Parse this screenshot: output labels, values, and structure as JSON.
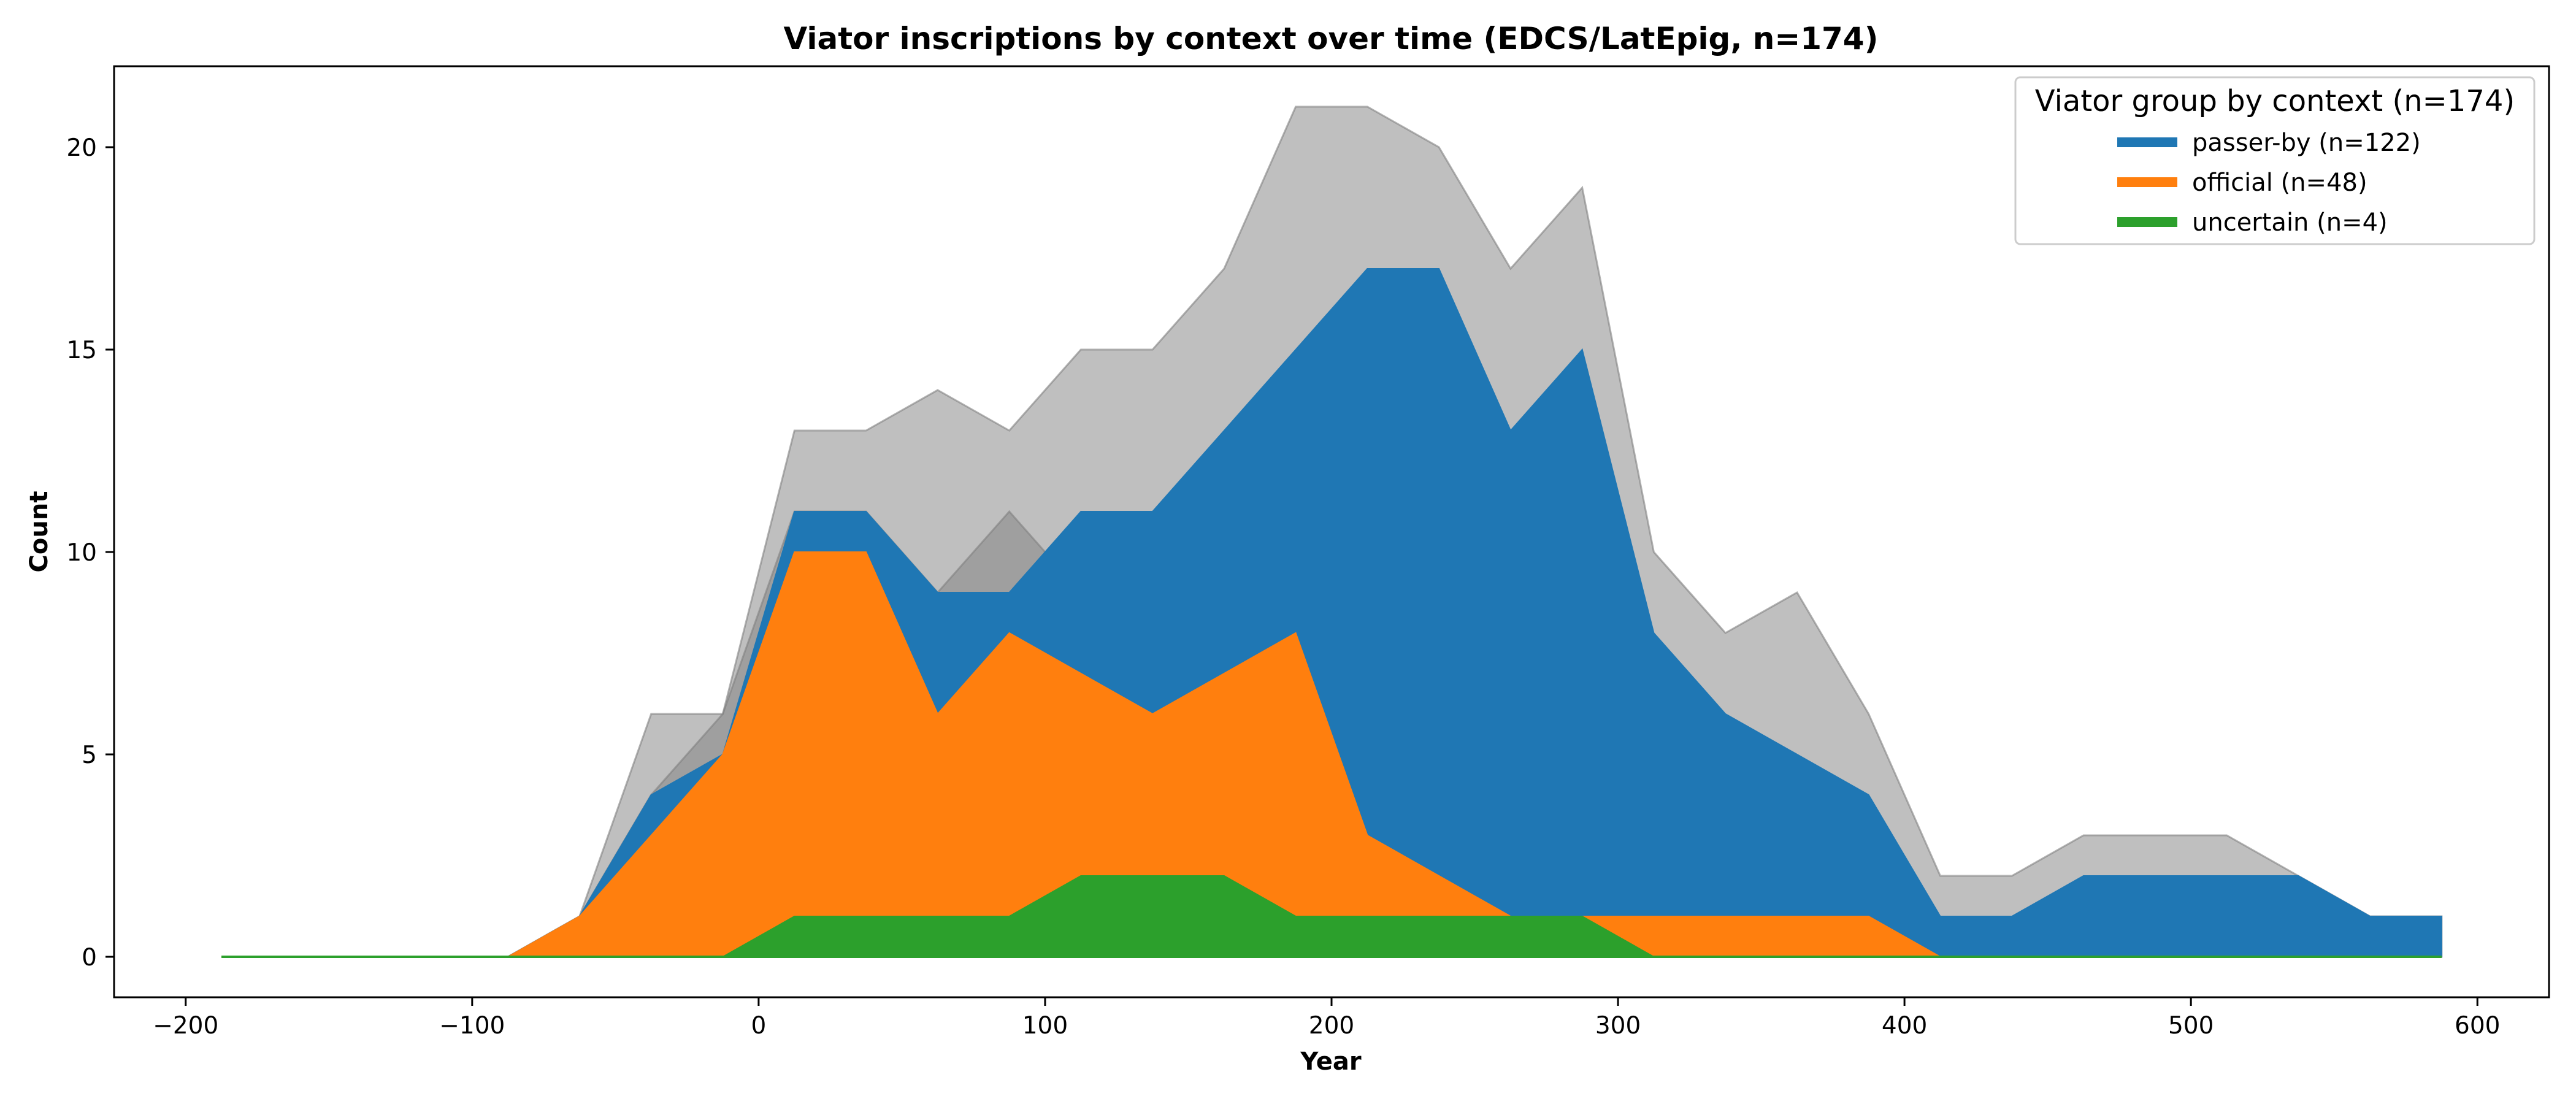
{
  "chart_data": {
    "type": "area",
    "title": "Viator inscriptions by context over time (EDCS/LatEpig, n=174)",
    "xlabel": "Year",
    "ylabel": "Count",
    "xlim": [
      -225,
      625
    ],
    "ylim": [
      -1,
      22
    ],
    "xticks": [
      -200,
      -100,
      0,
      100,
      200,
      300,
      400,
      500,
      600
    ],
    "yticks": [
      0,
      5,
      10,
      15,
      20
    ],
    "grid": false,
    "legend": {
      "title": "Viator group by context (n=174)",
      "placement": "top-right"
    },
    "x": [
      -187.5,
      -162.5,
      -137.5,
      -112.5,
      -87.5,
      -62.5,
      -37.5,
      -12.5,
      12.5,
      37.5,
      62.5,
      87.5,
      112.5,
      137.5,
      162.5,
      187.5,
      212.5,
      237.5,
      262.5,
      287.5,
      312.5,
      337.5,
      362.5,
      387.5,
      412.5,
      437.5,
      462.5,
      487.5,
      512.5,
      537.5,
      562.5,
      587.5
    ],
    "series": [
      {
        "name": "passer-by (n=122)",
        "color": "#1f77b4",
        "values": [
          0,
          0,
          0,
          0,
          0,
          1,
          4,
          5,
          11,
          11,
          9,
          9,
          11,
          11,
          13,
          15,
          17,
          17,
          13,
          15,
          8,
          6,
          5,
          4,
          1,
          1,
          2,
          2,
          2,
          2,
          1,
          1
        ],
        "band_lower": [
          0,
          0,
          0,
          0,
          0,
          0,
          0,
          1,
          2,
          2,
          1,
          3,
          2,
          2,
          2,
          1,
          1,
          1,
          2,
          2,
          1,
          0,
          0,
          0,
          0,
          0,
          0,
          0,
          1,
          1,
          0,
          0
        ],
        "band_upper": [
          0,
          0,
          0,
          0,
          0,
          1,
          6,
          6,
          13,
          13,
          14,
          13,
          15,
          15,
          17,
          21,
          21,
          20,
          17,
          19,
          10,
          8,
          9,
          6,
          2,
          2,
          3,
          3,
          3,
          2,
          1,
          1
        ]
      },
      {
        "name": "official (n=48)",
        "color": "#ff7f0e",
        "values": [
          0,
          0,
          0,
          0,
          0,
          1,
          3,
          5,
          10,
          10,
          6,
          8,
          7,
          6,
          7,
          8,
          3,
          2,
          1,
          1,
          1,
          1,
          1,
          1,
          0,
          0,
          0,
          0,
          0,
          0,
          0,
          0
        ],
        "band_lower": [
          0,
          0,
          0,
          0,
          0,
          0,
          0,
          1,
          4,
          4,
          1,
          2,
          2,
          3,
          3,
          3,
          1,
          1,
          1,
          1,
          0,
          0,
          0,
          0,
          0,
          0,
          0,
          0,
          0,
          0,
          0,
          0
        ],
        "band_upper": [
          0,
          0,
          0,
          0,
          0,
          1,
          4,
          6,
          11,
          11,
          9,
          11,
          9,
          9,
          10,
          12,
          5,
          4,
          2,
          2,
          1,
          1,
          1,
          1,
          0,
          0,
          0,
          0,
          0,
          0,
          0,
          0
        ]
      },
      {
        "name": "uncertain (n=4)",
        "color": "#2ca02c",
        "values": [
          0,
          0,
          0,
          0,
          0,
          0,
          0,
          0,
          1,
          1,
          1,
          1,
          2,
          2,
          2,
          1,
          1,
          1,
          1,
          1,
          0,
          0,
          0,
          0,
          0,
          0,
          0,
          0,
          0,
          0,
          0,
          0
        ],
        "band_lower": [
          0,
          0,
          0,
          0,
          0,
          0,
          0,
          0,
          0,
          0,
          0,
          0,
          0,
          0,
          0,
          0,
          0,
          0,
          0,
          0,
          0,
          0,
          0,
          0,
          0,
          0,
          0,
          0,
          0,
          0,
          0,
          0
        ],
        "band_upper": [
          0,
          0,
          0,
          0,
          0,
          0,
          0,
          0,
          2,
          2,
          2,
          2,
          2,
          3,
          3,
          3,
          1,
          1,
          2,
          2,
          1,
          0,
          0,
          0,
          0,
          0,
          0,
          0,
          0,
          0,
          0,
          0
        ]
      }
    ],
    "band_color": "#808080"
  }
}
